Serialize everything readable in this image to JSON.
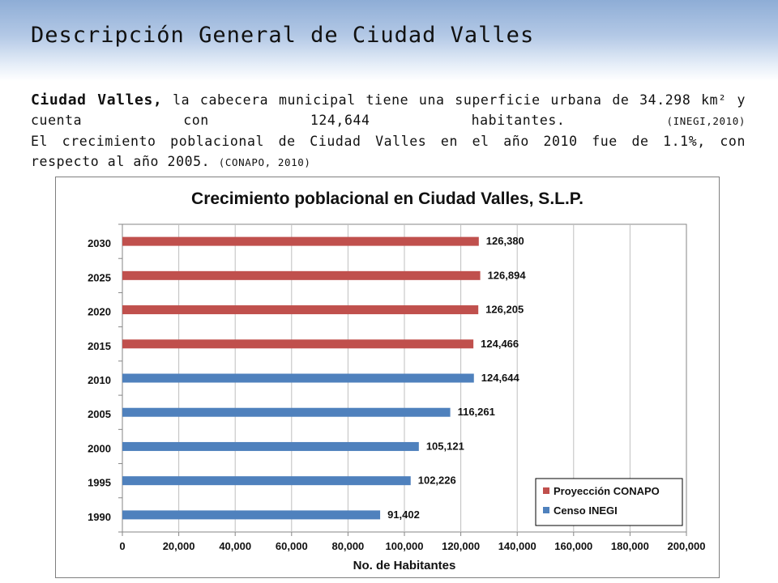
{
  "slide": {
    "title": "Descripción General de Ciudad Valles",
    "paragraph1": {
      "lead": "Ciudad Valles,",
      "text": " la cabecera municipal tiene una superficie urbana de 34.298 km² y cuenta con 124,644 habitantes.",
      "citation": "(INEGI,2010)"
    },
    "paragraph2": {
      "text": "El crecimiento poblacional de Ciudad Valles en el año 2010 fue de 1.1%, con respecto al año 2005.",
      "citation": "(CONAPO, 2010)"
    }
  },
  "chart_data": {
    "type": "bar",
    "orientation": "horizontal",
    "title": "Crecimiento poblacional en Ciudad Valles, S.L.P.",
    "xlabel": "No. de Habitantes",
    "ylabel": "",
    "xlim": [
      0,
      200000
    ],
    "xticks": [
      0,
      20000,
      40000,
      60000,
      80000,
      100000,
      120000,
      140000,
      160000,
      180000,
      200000
    ],
    "xtick_labels": [
      "0",
      "20,000",
      "40,000",
      "60,000",
      "80,000",
      "100,000",
      "120,000",
      "140,000",
      "160,000",
      "180,000",
      "200,000"
    ],
    "grid": true,
    "legend_position": "bottom-right",
    "categories": [
      "1990",
      "1995",
      "2000",
      "2005",
      "2010",
      "2015",
      "2020",
      "2025",
      "2030"
    ],
    "series": [
      {
        "name": "Censo INEGI",
        "color": "#4f81bd",
        "values": [
          91402,
          102226,
          105121,
          116261,
          124644,
          null,
          null,
          null,
          null
        ],
        "labels": [
          "91,402",
          "102,226",
          "105,121",
          "116,261",
          "124,644",
          null,
          null,
          null,
          null
        ]
      },
      {
        "name": "Proyección CONAPO",
        "color": "#c0504d",
        "values": [
          null,
          null,
          null,
          null,
          null,
          124466,
          126205,
          126894,
          126380
        ],
        "labels": [
          null,
          null,
          null,
          null,
          null,
          "124,466",
          "126,205",
          "126,894",
          "126,380"
        ]
      }
    ]
  }
}
